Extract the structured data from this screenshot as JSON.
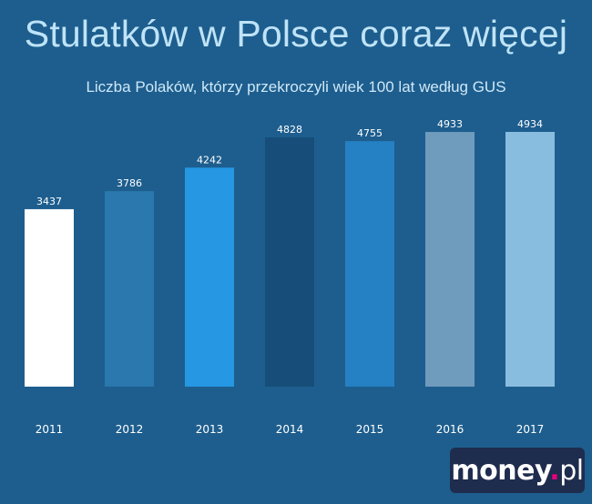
{
  "title": "Stulatków w Polsce coraz więcej",
  "subtitle": "Liczba Polaków, którzy przekroczyli wiek 100 lat według GUS",
  "logo": {
    "main": "money",
    "dot": ".",
    "suffix": "pl"
  },
  "chart_data": {
    "type": "bar",
    "categories": [
      "2011",
      "2012",
      "2013",
      "2014",
      "2015",
      "2016",
      "2017"
    ],
    "values": [
      3437,
      3786,
      4242,
      4828,
      4755,
      4933,
      4934
    ],
    "colors": [
      "#ffffff",
      "#2a78ad",
      "#2597e3",
      "#164e79",
      "#2581c3",
      "#6f9bbd",
      "#89bde0"
    ],
    "grid": false,
    "legend": "none"
  }
}
